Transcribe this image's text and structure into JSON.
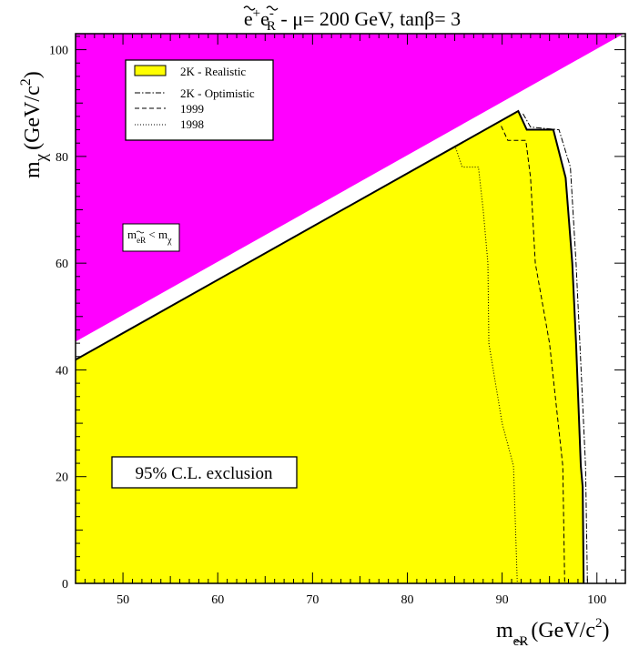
{
  "chart_data": {
    "type": "area",
    "title": {
      "pre": "e",
      "sup1": "+",
      "mid": "e",
      "sup2": "-",
      "sub": "R",
      "rest": " - μ= 200 GeV, tanβ= 3"
    },
    "xlabel": {
      "m": "m",
      "sub": "eR",
      "unit": "(GeV/c",
      "sup": "2",
      "close": ")"
    },
    "ylabel": {
      "m": "m",
      "sub": "χ",
      "unit": "(GeV/c",
      "sup": "2",
      "close": ")"
    },
    "xlim": [
      45,
      103
    ],
    "ylim": [
      0,
      103
    ],
    "xticks": [
      50,
      60,
      70,
      80,
      90,
      100
    ],
    "yticks": [
      0,
      20,
      40,
      60,
      80,
      100
    ],
    "colors": {
      "kinematic_region": "#ff00ff",
      "excluded_region": "#ffff00",
      "axes": "#000000"
    },
    "kinematic_label": {
      "m1": "m",
      "sub1": "eR",
      "lt": " < ",
      "m2": "m",
      "sub2": "χ"
    },
    "annotation": "95% C.L. exclusion",
    "legend": {
      "position": "top-left",
      "entries": [
        {
          "label": "2K - Realistic",
          "style": "fill"
        },
        {
          "label": "2K - Optimistic",
          "style": "dashdot"
        },
        {
          "label": "1999",
          "style": "dashed"
        },
        {
          "label": "1998",
          "style": "dotted"
        }
      ]
    },
    "series": [
      {
        "name": "2K - Realistic",
        "style": "fill",
        "points": [
          [
            45,
            41.9
          ],
          [
            91.7,
            88.5
          ],
          [
            92.6,
            85
          ],
          [
            95.4,
            85
          ],
          [
            96.7,
            76
          ],
          [
            97.4,
            60
          ],
          [
            97.8,
            45
          ],
          [
            98.3,
            22
          ],
          [
            98.5,
            18
          ],
          [
            98.6,
            0
          ]
        ]
      },
      {
        "name": "2K - Optimistic",
        "style": "dashdot",
        "points": [
          [
            92.2,
            88
          ],
          [
            93,
            85.5
          ],
          [
            96,
            85
          ],
          [
            97.2,
            78
          ],
          [
            97.8,
            60
          ],
          [
            98.2,
            45
          ],
          [
            98.8,
            22
          ],
          [
            99,
            0
          ]
        ]
      },
      {
        "name": "1999",
        "style": "dashed",
        "points": [
          [
            89.9,
            85.7
          ],
          [
            90.6,
            83
          ],
          [
            92.5,
            83
          ],
          [
            93,
            76
          ],
          [
            93.5,
            60
          ],
          [
            95,
            45
          ],
          [
            96.4,
            22
          ],
          [
            96.6,
            0
          ]
        ]
      },
      {
        "name": "1998",
        "style": "dotted",
        "points": [
          [
            85.1,
            81.6
          ],
          [
            85.8,
            78
          ],
          [
            87.5,
            78
          ],
          [
            88,
            70
          ],
          [
            88.5,
            60
          ],
          [
            88.6,
            45
          ],
          [
            90,
            30
          ],
          [
            91.2,
            22
          ],
          [
            91.6,
            0
          ]
        ]
      }
    ]
  }
}
